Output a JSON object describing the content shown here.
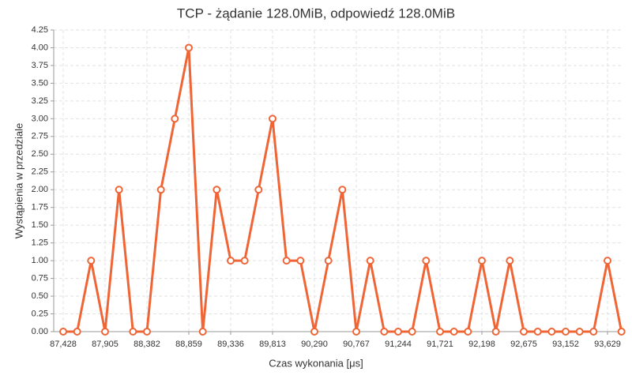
{
  "chart_data": {
    "type": "line",
    "title": "TCP - żądanie 128.0MiB, odpowiedź 128.0MiB",
    "x_label": "Czas wykonania [μs]",
    "y_label": "Wystąpienia w przedziale",
    "color": "#ef6536",
    "grid": true,
    "x": [
      87428,
      87587,
      87746,
      87905,
      88064,
      88223,
      88382,
      88541,
      88700,
      88859,
      89018,
      89177,
      89336,
      89495,
      89654,
      89813,
      89972,
      90131,
      90290,
      90449,
      90608,
      90767,
      90926,
      91085,
      91244,
      91403,
      91562,
      91721,
      91880,
      92039,
      92198,
      92357,
      92516,
      92675,
      92834,
      92993,
      93152,
      93311,
      93470,
      93629,
      93788
    ],
    "values": [
      0,
      0,
      1,
      0,
      2,
      0,
      0,
      2,
      3,
      4,
      0,
      2,
      1,
      1,
      2,
      3,
      1,
      1,
      0,
      1,
      2,
      0,
      1,
      0,
      0,
      0,
      1,
      0,
      0,
      0,
      1,
      0,
      1,
      0,
      0,
      0,
      0,
      0,
      0,
      1,
      0
    ],
    "xlim": [
      87320,
      93800
    ],
    "xticks": [
      {
        "value": 87428,
        "label": "87,428"
      },
      {
        "value": 87905,
        "label": "87,905"
      },
      {
        "value": 88382,
        "label": "88,382"
      },
      {
        "value": 88859,
        "label": "88,859"
      },
      {
        "value": 89336,
        "label": "89,336"
      },
      {
        "value": 89813,
        "label": "89,813"
      },
      {
        "value": 90290,
        "label": "90,290"
      },
      {
        "value": 90767,
        "label": "90,767"
      },
      {
        "value": 91244,
        "label": "91,244"
      },
      {
        "value": 91721,
        "label": "91,721"
      },
      {
        "value": 92198,
        "label": "92,198"
      },
      {
        "value": 92675,
        "label": "92,675"
      },
      {
        "value": 93152,
        "label": "93,152"
      },
      {
        "value": 93629,
        "label": "93,629"
      }
    ],
    "ylim": [
      0,
      4.25
    ],
    "yticks": [
      {
        "value": 0,
        "label": "0.00"
      },
      {
        "value": 0.25,
        "label": "0.25"
      },
      {
        "value": 0.5,
        "label": "0.50"
      },
      {
        "value": 0.75,
        "label": "0.75"
      },
      {
        "value": 1,
        "label": "1.00"
      },
      {
        "value": 1.25,
        "label": "1.25"
      },
      {
        "value": 1.5,
        "label": "1.50"
      },
      {
        "value": 1.75,
        "label": "1.75"
      },
      {
        "value": 2,
        "label": "2.00"
      },
      {
        "value": 2.25,
        "label": "2.25"
      },
      {
        "value": 2.5,
        "label": "2.50"
      },
      {
        "value": 2.75,
        "label": "2.75"
      },
      {
        "value": 3,
        "label": "3.00"
      },
      {
        "value": 3.25,
        "label": "3.25"
      },
      {
        "value": 3.5,
        "label": "3.50"
      },
      {
        "value": 3.75,
        "label": "3.75"
      },
      {
        "value": 4,
        "label": "4.00"
      },
      {
        "value": 4.25,
        "label": "4.25"
      }
    ]
  }
}
